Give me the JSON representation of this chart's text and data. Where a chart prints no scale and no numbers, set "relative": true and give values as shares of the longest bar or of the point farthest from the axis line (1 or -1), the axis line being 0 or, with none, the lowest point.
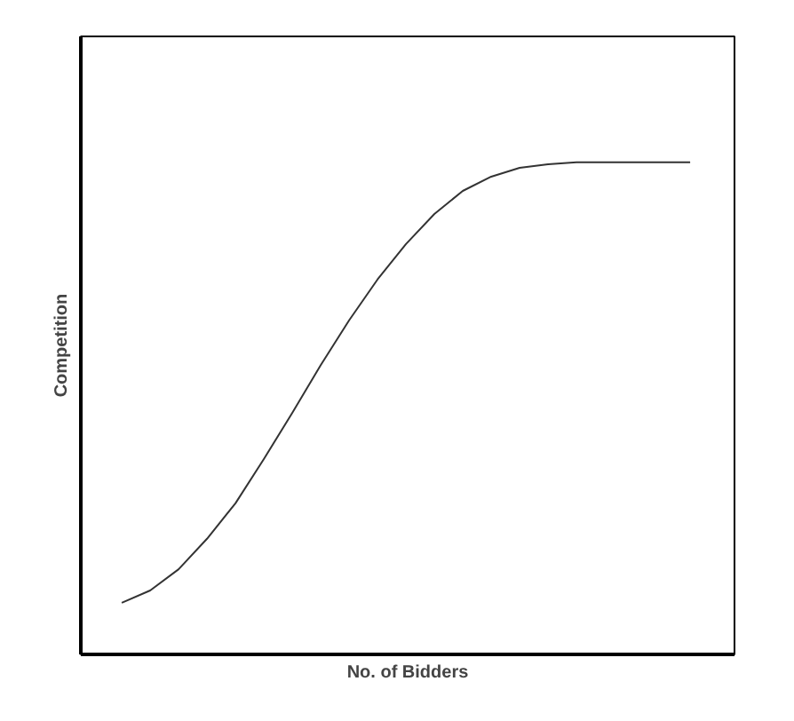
{
  "chart_data": {
    "type": "line",
    "xlabel": "No. of Bidders",
    "ylabel": "Competition",
    "relative": true,
    "categories": [
      null,
      null,
      null,
      null,
      null,
      null,
      null,
      null,
      null,
      null,
      null,
      null,
      null,
      null,
      null,
      null,
      null,
      null,
      null,
      null,
      null
    ],
    "series": [
      {
        "color": "#333333",
        "values": [
          0.105,
          0.13,
          0.173,
          0.235,
          0.307,
          0.397,
          0.491,
          0.588,
          0.679,
          0.762,
          0.834,
          0.895,
          0.942,
          0.971,
          0.989,
          0.996,
          1,
          1,
          1,
          1,
          1
        ]
      }
    ]
  }
}
